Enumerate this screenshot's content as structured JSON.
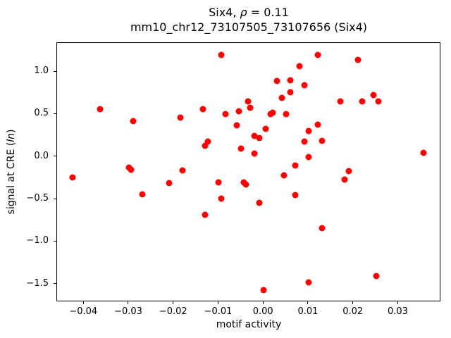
{
  "figure": {
    "title_line1": {
      "prefix": "Six4, ",
      "rho": "ρ",
      "suffix": " = 0.11"
    },
    "title_line2": "mm10_chr12_73107505_73107656 (Six4)"
  },
  "chart_data": {
    "type": "scatter",
    "title": "Six4, ρ = 0.11",
    "subtitle": "mm10_chr12_73107505_73107656 (Six4)",
    "xlabel": "motif activity",
    "ylabel": "signal at CRE (ln)",
    "ylabel_parts": {
      "prefix": "signal at CRE (",
      "italic": "ln",
      "suffix": ")"
    },
    "marker_color": "#ff0000",
    "axis_color": "#000000",
    "grid": false,
    "legend": null,
    "xlim": [
      -0.046,
      0.0395
    ],
    "ylim": [
      -1.71,
      1.34
    ],
    "xticks": [
      -0.04,
      -0.03,
      -0.02,
      -0.01,
      0.0,
      0.01,
      0.02,
      0.03
    ],
    "yticks": [
      -1.5,
      -1.0,
      -0.5,
      0.0,
      0.5,
      1.0
    ],
    "points": [
      [
        -0.0425,
        -0.24
      ],
      [
        -0.0365,
        0.56
      ],
      [
        -0.03,
        -0.13
      ],
      [
        -0.0295,
        -0.15
      ],
      [
        -0.029,
        0.42
      ],
      [
        -0.027,
        -0.44
      ],
      [
        -0.021,
        -0.31
      ],
      [
        -0.0185,
        0.46
      ],
      [
        -0.018,
        -0.16
      ],
      [
        -0.0135,
        0.56
      ],
      [
        -0.013,
        0.13
      ],
      [
        -0.0125,
        0.18
      ],
      [
        -0.013,
        -0.68
      ],
      [
        -0.01,
        -0.3
      ],
      [
        -0.0095,
        1.2
      ],
      [
        -0.0085,
        0.5
      ],
      [
        -0.0095,
        -0.49
      ],
      [
        -0.006,
        0.37
      ],
      [
        -0.0055,
        0.54
      ],
      [
        -0.005,
        0.1
      ],
      [
        -0.0045,
        -0.3
      ],
      [
        -0.004,
        -0.33
      ],
      [
        -0.0035,
        0.65
      ],
      [
        -0.003,
        0.58
      ],
      [
        -0.002,
        0.25
      ],
      [
        -0.002,
        0.04
      ],
      [
        -0.001,
        0.22
      ],
      [
        -0.001,
        -0.54
      ],
      [
        0.0,
        -1.57
      ],
      [
        0.0005,
        0.33
      ],
      [
        0.0015,
        0.5
      ],
      [
        0.002,
        0.52
      ],
      [
        0.003,
        0.89
      ],
      [
        0.004,
        0.69
      ],
      [
        0.0045,
        -0.22
      ],
      [
        0.005,
        0.5
      ],
      [
        0.006,
        0.9
      ],
      [
        0.006,
        0.76
      ],
      [
        0.007,
        -0.1
      ],
      [
        0.007,
        -0.45
      ],
      [
        0.008,
        1.07
      ],
      [
        0.009,
        0.84
      ],
      [
        0.009,
        0.18
      ],
      [
        0.01,
        0.3
      ],
      [
        0.01,
        0.0
      ],
      [
        0.01,
        -1.48
      ],
      [
        0.012,
        1.2
      ],
      [
        0.012,
        0.38
      ],
      [
        0.013,
        0.19
      ],
      [
        0.013,
        -0.84
      ],
      [
        0.017,
        0.65
      ],
      [
        0.018,
        -0.27
      ],
      [
        0.019,
        -0.17
      ],
      [
        0.021,
        1.14
      ],
      [
        0.022,
        0.65
      ],
      [
        0.0245,
        0.73
      ],
      [
        0.025,
        -1.4
      ],
      [
        0.0255,
        0.65
      ],
      [
        0.0355,
        0.05
      ]
    ]
  }
}
